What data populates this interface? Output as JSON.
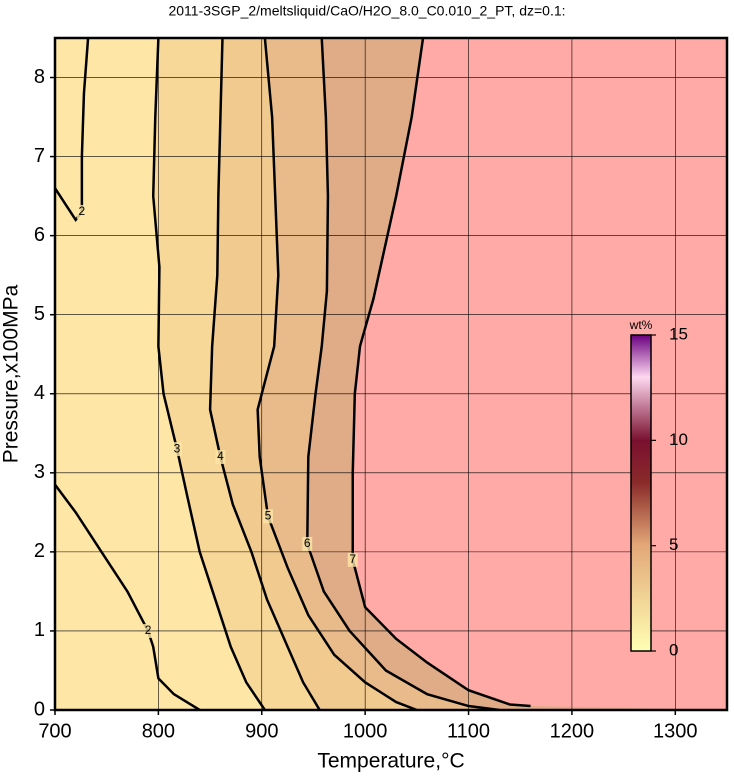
{
  "chart_data": {
    "type": "contour",
    "title": "2011-3SGP_2/meltsliquid/CaO/H2O_8.0_C0.010_2_PT, dz=0.1:",
    "x_label": "Temperature,°C",
    "y_label": "Pressure,x100MPa",
    "xlim": [
      700,
      1350
    ],
    "ylim": [
      0,
      8.5
    ],
    "xticks": [
      700,
      800,
      900,
      1000,
      1100,
      1200,
      1300
    ],
    "yticks": [
      0,
      1,
      2,
      3,
      4,
      5,
      6,
      7,
      8
    ],
    "grid": true,
    "background": "#fde6a6",
    "contours": [
      {
        "level": 2,
        "x": [
          732,
          728,
          726,
          726,
          720,
          710,
          700,
          null,
          700,
          720,
          745,
          770,
          790,
          795,
          800,
          815,
          840
        ],
        "y": [
          8.5,
          7.8,
          7.0,
          6.3,
          6.2,
          6.4,
          6.6,
          null,
          2.85,
          2.5,
          2.0,
          1.5,
          1.0,
          0.8,
          0.4,
          0.2,
          0
        ]
      },
      {
        "level": 3,
        "color": "#f8d898",
        "x": [
          800,
          797,
          795,
          801,
          800,
          805,
          818,
          828,
          840,
          855,
          870,
          885,
          903
        ],
        "y": [
          8.5,
          7.5,
          6.5,
          5.6,
          4.6,
          4.0,
          3.3,
          2.7,
          2.0,
          1.4,
          0.8,
          0.35,
          0
        ]
      },
      {
        "level": 4,
        "color": "#f1ca90",
        "x": [
          862,
          860,
          858,
          857,
          852,
          850,
          860,
          872,
          890,
          905,
          925,
          940,
          956
        ],
        "y": [
          8.5,
          7.5,
          6.5,
          5.5,
          4.6,
          3.8,
          3.2,
          2.6,
          2.0,
          1.4,
          0.8,
          0.35,
          0
        ]
      },
      {
        "level": 5,
        "color": "#e9bb8a",
        "x": [
          903,
          910,
          913,
          916,
          912,
          896,
          898,
          906,
          925,
          945,
          970,
          1000,
          1030,
          1050
        ],
        "y": [
          8.5,
          7.5,
          6.5,
          5.5,
          4.6,
          3.8,
          3.2,
          2.45,
          1.8,
          1.2,
          0.7,
          0.35,
          0.1,
          0
        ]
      },
      {
        "level": 6,
        "color": "#e0ac88",
        "x": [
          958,
          962,
          964,
          963,
          958,
          952,
          945,
          944,
          960,
          985,
          1020,
          1060,
          1100,
          1130
        ],
        "y": [
          8.5,
          7.5,
          6.5,
          5.3,
          4.6,
          4.0,
          3.2,
          2.1,
          1.5,
          1.0,
          0.5,
          0.2,
          0.05,
          0
        ]
      },
      {
        "level": 7,
        "color": "#ffaaa6",
        "x": [
          1056,
          1045,
          1030,
          1008,
          995,
          990,
          988,
          988,
          1000,
          1030,
          1060,
          1100,
          1140,
          1160
        ],
        "y": [
          8.5,
          7.5,
          6.5,
          5.2,
          4.6,
          4.0,
          3.0,
          1.9,
          1.3,
          0.9,
          0.6,
          0.25,
          0.07,
          0.05
        ]
      }
    ],
    "colorbar": {
      "label": "wt%",
      "lim": [
        0,
        15
      ],
      "ticks": [
        0,
        5,
        10,
        15
      ],
      "stops": [
        {
          "value": 0,
          "color": "#ffffb4"
        },
        {
          "value": 5,
          "color": "#e3a878"
        },
        {
          "value": 8,
          "color": "#8a2a2a"
        },
        {
          "value": 10,
          "color": "#7a1030"
        },
        {
          "value": 13,
          "color": "#ffd8f0"
        },
        {
          "value": 15,
          "color": "#6a0080"
        }
      ]
    }
  }
}
